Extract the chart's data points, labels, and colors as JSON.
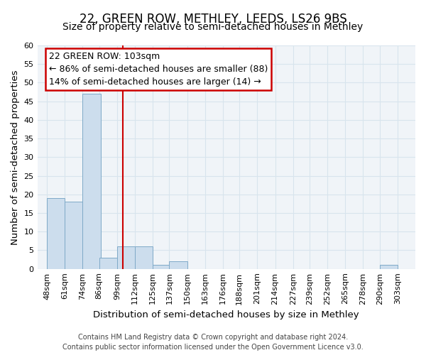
{
  "title": "22, GREEN ROW, METHLEY, LEEDS, LS26 9BS",
  "subtitle": "Size of property relative to semi-detached houses in Methley",
  "xlabel": "Distribution of semi-detached houses by size in Methley",
  "ylabel": "Number of semi-detached properties",
  "bin_labels": [
    "48sqm",
    "61sqm",
    "74sqm",
    "86sqm",
    "99sqm",
    "112sqm",
    "125sqm",
    "137sqm",
    "150sqm",
    "163sqm",
    "176sqm",
    "188sqm",
    "201sqm",
    "214sqm",
    "227sqm",
    "239sqm",
    "252sqm",
    "265sqm",
    "278sqm",
    "290sqm",
    "303sqm"
  ],
  "bin_left_edges": [
    48,
    61,
    74,
    86,
    99,
    112,
    125,
    137,
    150,
    163,
    176,
    188,
    201,
    214,
    227,
    239,
    252,
    265,
    278,
    290
  ],
  "bar_values": [
    19,
    18,
    47,
    3,
    6,
    6,
    1,
    2,
    0,
    0,
    0,
    0,
    0,
    0,
    0,
    0,
    0,
    0,
    0,
    1
  ],
  "bar_color": "#ccdded",
  "bar_edgecolor": "#7faac8",
  "grid_color": "#d8e4ed",
  "property_line_x": 103,
  "property_line_color": "#cc0000",
  "annotation_title": "22 GREEN ROW: 103sqm",
  "annotation_line1": "← 86% of semi-detached houses are smaller (88)",
  "annotation_line2": "14% of semi-detached houses are larger (14) →",
  "annotation_box_facecolor": "#ffffff",
  "annotation_box_edgecolor": "#cc0000",
  "ylim_max": 60,
  "yticks": [
    0,
    5,
    10,
    15,
    20,
    25,
    30,
    35,
    40,
    45,
    50,
    55,
    60
  ],
  "xlim_min": 41,
  "xlim_max": 316,
  "footer_line1": "Contains HM Land Registry data © Crown copyright and database right 2024.",
  "footer_line2": "Contains public sector information licensed under the Open Government Licence v3.0.",
  "title_fontsize": 12,
  "subtitle_fontsize": 10,
  "axis_label_fontsize": 9.5,
  "tick_fontsize": 8,
  "annotation_fontsize": 9,
  "footer_fontsize": 7
}
